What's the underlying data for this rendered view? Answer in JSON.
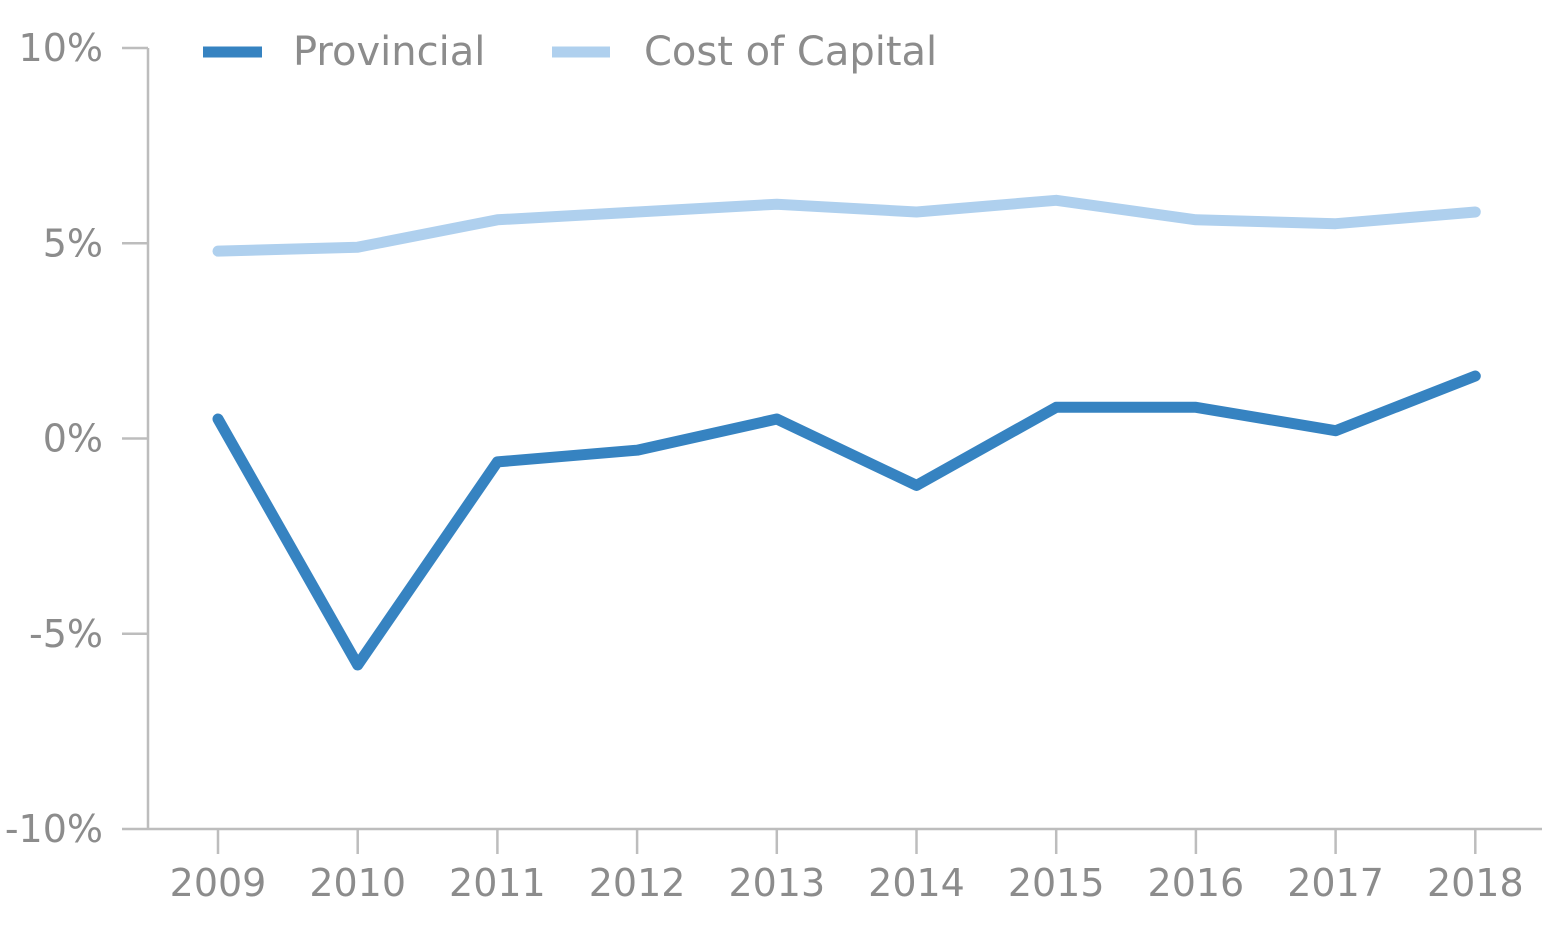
{
  "chart_data": {
    "type": "line",
    "categories": [
      "2009",
      "2010",
      "2011",
      "2012",
      "2013",
      "2014",
      "2015",
      "2016",
      "2017",
      "2018"
    ],
    "series": [
      {
        "name": "Provincial",
        "color": "#3683c1",
        "values": [
          0.5,
          -5.8,
          -0.6,
          -0.3,
          0.5,
          -1.2,
          0.8,
          0.8,
          0.2,
          1.6
        ]
      },
      {
        "name": "Cost of Capital",
        "color": "#afd0ee",
        "values": [
          4.8,
          4.9,
          5.6,
          5.8,
          6.0,
          5.8,
          6.1,
          5.6,
          5.5,
          5.8
        ]
      }
    ],
    "yticks": [
      10,
      5,
      0,
      -5,
      -10
    ],
    "ytick_labels": [
      "10%",
      "5%",
      "0%",
      "-5%",
      "-10%"
    ],
    "ylim": [
      -10,
      10
    ],
    "grid": false,
    "legend_position": "top-left"
  }
}
